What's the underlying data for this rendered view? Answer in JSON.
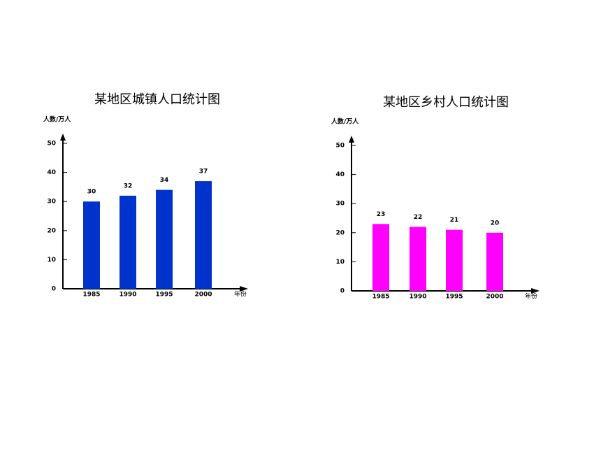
{
  "chart_data": [
    {
      "type": "bar",
      "title": "某地区城镇人口统计图",
      "ylabel": "人数/万人",
      "xlabel": "年份",
      "categories": [
        "1985",
        "1990",
        "1995",
        "2000"
      ],
      "values": [
        30,
        32,
        34,
        37
      ],
      "color": "#0033cc",
      "ylim": [
        0,
        50
      ],
      "yticks": [
        0,
        10,
        20,
        30,
        40,
        50
      ]
    },
    {
      "type": "bar",
      "title": "某地区乡村人口统计图",
      "ylabel": "人数/万人",
      "xlabel": "年份",
      "categories": [
        "1985",
        "1990",
        "1995",
        "2000"
      ],
      "values": [
        23,
        22,
        21,
        20
      ],
      "color": "#ff00ff",
      "ylim": [
        0,
        50
      ],
      "yticks": [
        0,
        10,
        20,
        30,
        40,
        50
      ]
    }
  ]
}
